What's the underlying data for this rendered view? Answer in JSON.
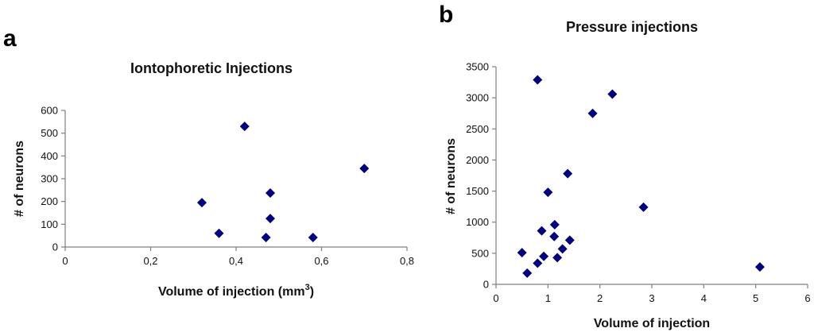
{
  "panels": [
    {
      "letter": "a"
    },
    {
      "letter": "b"
    }
  ],
  "chart_data": [
    {
      "type": "scatter",
      "title": "Iontophoretic Injections",
      "xlabel": "Volume of injection (mm",
      "xlabel_sup": "3",
      "xlabel_after": ")",
      "ylabel": "# of neurons",
      "xlim": [
        0,
        0.8
      ],
      "ylim": [
        0,
        600
      ],
      "xticks": [
        "0",
        "0,2",
        "0,4",
        "0,6",
        "0,8"
      ],
      "xtick_values": [
        0,
        0.2,
        0.4,
        0.6,
        0.8
      ],
      "yticks": [
        "0",
        "100",
        "200",
        "300",
        "400",
        "500",
        "600"
      ],
      "ytick_values": [
        0,
        100,
        200,
        300,
        400,
        500,
        600
      ],
      "marker": "diamond",
      "marker_color": "#000080",
      "points": [
        {
          "x": 0.32,
          "y": 195
        },
        {
          "x": 0.36,
          "y": 60
        },
        {
          "x": 0.42,
          "y": 530
        },
        {
          "x": 0.47,
          "y": 42
        },
        {
          "x": 0.48,
          "y": 125
        },
        {
          "x": 0.48,
          "y": 237
        },
        {
          "x": 0.58,
          "y": 42
        },
        {
          "x": 0.7,
          "y": 345
        }
      ]
    },
    {
      "type": "scatter",
      "title": "Pressure injections",
      "xlabel": "Volume of injection",
      "ylabel": "# of neurons",
      "xlim": [
        0,
        6
      ],
      "ylim": [
        0,
        3500
      ],
      "xticks": [
        "0",
        "1",
        "2",
        "3",
        "4",
        "5",
        "6"
      ],
      "xtick_values": [
        0,
        1,
        2,
        3,
        4,
        5,
        6
      ],
      "yticks": [
        "0",
        "500",
        "1000",
        "1500",
        "2000",
        "2500",
        "3000",
        "3500"
      ],
      "ytick_values": [
        0,
        500,
        1000,
        1500,
        2000,
        2500,
        3000,
        3500
      ],
      "marker": "diamond",
      "marker_color": "#000080",
      "points": [
        {
          "x": 0.5,
          "y": 510
        },
        {
          "x": 0.6,
          "y": 180
        },
        {
          "x": 0.8,
          "y": 340
        },
        {
          "x": 0.8,
          "y": 3290
        },
        {
          "x": 0.88,
          "y": 860
        },
        {
          "x": 0.92,
          "y": 450
        },
        {
          "x": 1.0,
          "y": 1480
        },
        {
          "x": 1.12,
          "y": 770
        },
        {
          "x": 1.13,
          "y": 960
        },
        {
          "x": 1.18,
          "y": 430
        },
        {
          "x": 1.28,
          "y": 570
        },
        {
          "x": 1.38,
          "y": 1780
        },
        {
          "x": 1.42,
          "y": 710
        },
        {
          "x": 1.86,
          "y": 2750
        },
        {
          "x": 2.24,
          "y": 3060
        },
        {
          "x": 2.84,
          "y": 1240
        },
        {
          "x": 5.08,
          "y": 280
        }
      ]
    }
  ]
}
